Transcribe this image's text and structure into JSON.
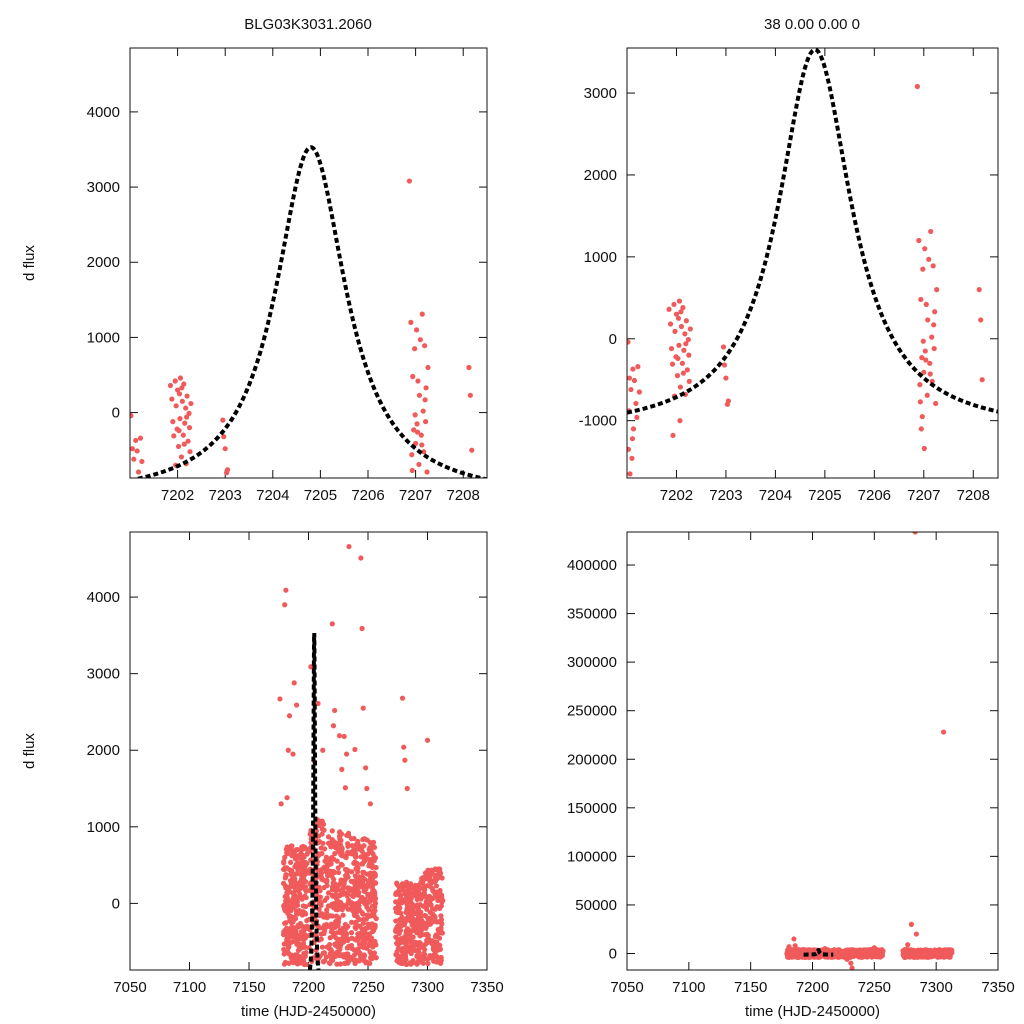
{
  "titles": {
    "left": "BLG03K3031.2060",
    "right": "38  0.00  0.00  0"
  },
  "colors": {
    "points": "#f05a5a",
    "model": "#000000",
    "axes": "#111111"
  },
  "chart_data": [
    {
      "id": "top-left",
      "type": "scatter",
      "title": "BLG03K3031.2060",
      "xlabel": "",
      "ylabel": "d flux",
      "xlim": [
        7201.0,
        7208.5
      ],
      "ylim": [
        -870,
        4850
      ],
      "xticks": [
        7202,
        7203,
        7204,
        7205,
        7206,
        7207,
        7208
      ],
      "yticks": [
        0,
        1000,
        2000,
        3000,
        4000
      ],
      "model": {
        "peak_time": 7204.8,
        "peak_flux": 3530,
        "baseline": -1150,
        "width": 0.9
      },
      "points": [
        [
          7201.02,
          -40
        ],
        [
          7201.05,
          -480
        ],
        [
          7201.08,
          -620
        ],
        [
          7201.12,
          -370
        ],
        [
          7201.15,
          -510
        ],
        [
          7201.18,
          -790
        ],
        [
          7201.22,
          -340
        ],
        [
          7201.25,
          -650
        ],
        [
          7201.85,
          360
        ],
        [
          7201.88,
          180
        ],
        [
          7201.9,
          -120
        ],
        [
          7201.92,
          -310
        ],
        [
          7201.95,
          420
        ],
        [
          7201.97,
          90
        ],
        [
          7201.99,
          -220
        ],
        [
          7202.0,
          300
        ],
        [
          7202.02,
          -450
        ],
        [
          7202.04,
          250
        ],
        [
          7202.05,
          -80
        ],
        [
          7202.06,
          460
        ],
        [
          7202.08,
          -590
        ],
        [
          7202.1,
          150
        ],
        [
          7202.12,
          -300
        ],
        [
          7202.13,
          380
        ],
        [
          7202.15,
          -140
        ],
        [
          7202.17,
          60
        ],
        [
          7202.18,
          -680
        ],
        [
          7202.2,
          220
        ],
        [
          7202.22,
          -380
        ],
        [
          7202.24,
          -10
        ],
        [
          7202.26,
          -520
        ],
        [
          7202.28,
          120
        ],
        [
          7201.96,
          -700
        ],
        [
          7202.03,
          -240
        ],
        [
          7202.09,
          330
        ],
        [
          7202.14,
          -420
        ],
        [
          7202.19,
          -60
        ],
        [
          7202.25,
          -200
        ],
        [
          7202.95,
          -100
        ],
        [
          7202.97,
          -320
        ],
        [
          7203.0,
          -480
        ],
        [
          7203.03,
          -800
        ],
        [
          7203.05,
          -760
        ],
        [
          7206.9,
          1200
        ],
        [
          7206.92,
          -560
        ],
        [
          7206.94,
          480
        ],
        [
          7206.96,
          -230
        ],
        [
          7206.98,
          850
        ],
        [
          7207.0,
          -410
        ],
        [
          7207.02,
          1100
        ],
        [
          7207.03,
          -150
        ],
        [
          7207.05,
          420
        ],
        [
          7207.07,
          -690
        ],
        [
          7207.08,
          230
        ],
        [
          7207.1,
          970
        ],
        [
          7207.12,
          -300
        ],
        [
          7207.14,
          1310
        ],
        [
          7207.16,
          20
        ],
        [
          7207.17,
          -520
        ],
        [
          7207.19,
          890
        ],
        [
          7207.21,
          -120
        ],
        [
          7207.22,
          330
        ],
        [
          7207.24,
          -790
        ],
        [
          7207.26,
          600
        ],
        [
          7206.93,
          -770
        ],
        [
          7206.99,
          -30
        ],
        [
          7207.04,
          -260
        ],
        [
          7207.13,
          -430
        ],
        [
          7207.2,
          170
        ],
        [
          7206.87,
          3080
        ],
        [
          7208.12,
          600
        ],
        [
          7208.15,
          230
        ],
        [
          7208.18,
          -500
        ]
      ]
    },
    {
      "id": "top-right",
      "type": "scatter",
      "title": "38  0.00  0.00  0",
      "xlabel": "",
      "ylabel": "",
      "xlim": [
        7201.0,
        7208.5
      ],
      "ylim": [
        -1700,
        3550
      ],
      "xticks": [
        7202,
        7203,
        7204,
        7205,
        7206,
        7207,
        7208
      ],
      "yticks": [
        -1000,
        0,
        1000,
        2000,
        3000
      ],
      "model": {
        "peak_time": 7204.8,
        "peak_flux": 3530,
        "baseline": -1150,
        "width": 0.9
      },
      "points": [
        [
          7201.02,
          -40
        ],
        [
          7201.03,
          -1350
        ],
        [
          7201.05,
          -480
        ],
        [
          7201.06,
          -1650
        ],
        [
          7201.08,
          -620
        ],
        [
          7201.1,
          -1460
        ],
        [
          7201.12,
          -370
        ],
        [
          7201.13,
          -1100
        ],
        [
          7201.15,
          -510
        ],
        [
          7201.18,
          -790
        ],
        [
          7201.2,
          -960
        ],
        [
          7201.22,
          -340
        ],
        [
          7201.25,
          -650
        ],
        [
          7201.04,
          -880
        ],
        [
          7201.11,
          -1220
        ],
        [
          7201.85,
          360
        ],
        [
          7201.88,
          180
        ],
        [
          7201.9,
          -120
        ],
        [
          7201.92,
          -310
        ],
        [
          7201.95,
          420
        ],
        [
          7201.97,
          90
        ],
        [
          7201.99,
          -220
        ],
        [
          7202.0,
          300
        ],
        [
          7202.02,
          -450
        ],
        [
          7202.04,
          250
        ],
        [
          7202.05,
          -80
        ],
        [
          7202.06,
          460
        ],
        [
          7202.08,
          -590
        ],
        [
          7202.1,
          150
        ],
        [
          7202.12,
          -300
        ],
        [
          7202.13,
          380
        ],
        [
          7202.15,
          -140
        ],
        [
          7202.17,
          60
        ],
        [
          7202.18,
          -680
        ],
        [
          7202.2,
          220
        ],
        [
          7202.22,
          -380
        ],
        [
          7202.24,
          -10
        ],
        [
          7202.26,
          -520
        ],
        [
          7202.28,
          120
        ],
        [
          7201.96,
          -700
        ],
        [
          7202.03,
          -240
        ],
        [
          7202.09,
          330
        ],
        [
          7202.14,
          -420
        ],
        [
          7202.19,
          -60
        ],
        [
          7202.25,
          -200
        ],
        [
          7201.93,
          -1180
        ],
        [
          7202.07,
          -1000
        ],
        [
          7202.95,
          -100
        ],
        [
          7202.97,
          -320
        ],
        [
          7203.0,
          -480
        ],
        [
          7203.03,
          -800
        ],
        [
          7203.05,
          -760
        ],
        [
          7206.9,
          1200
        ],
        [
          7206.92,
          -560
        ],
        [
          7206.94,
          480
        ],
        [
          7206.96,
          -230
        ],
        [
          7206.98,
          850
        ],
        [
          7207.0,
          -410
        ],
        [
          7207.02,
          1100
        ],
        [
          7207.03,
          -150
        ],
        [
          7207.05,
          420
        ],
        [
          7207.07,
          -690
        ],
        [
          7207.08,
          230
        ],
        [
          7207.1,
          970
        ],
        [
          7207.12,
          -300
        ],
        [
          7207.14,
          1310
        ],
        [
          7207.16,
          20
        ],
        [
          7207.17,
          -520
        ],
        [
          7207.19,
          890
        ],
        [
          7207.21,
          -120
        ],
        [
          7207.22,
          330
        ],
        [
          7207.24,
          -790
        ],
        [
          7207.26,
          600
        ],
        [
          7206.93,
          -770
        ],
        [
          7206.99,
          -30
        ],
        [
          7207.04,
          -260
        ],
        [
          7207.13,
          -430
        ],
        [
          7207.2,
          170
        ],
        [
          7206.95,
          -1100
        ],
        [
          7207.01,
          -1340
        ],
        [
          7206.97,
          -950
        ],
        [
          7206.87,
          3080
        ],
        [
          7208.12,
          600
        ],
        [
          7208.15,
          230
        ],
        [
          7208.18,
          -500
        ]
      ]
    },
    {
      "id": "bottom-left",
      "type": "scatter",
      "title": "",
      "xlabel": "time (HJD-2450000)",
      "ylabel": "d flux",
      "xlim": [
        7050,
        7350
      ],
      "ylim": [
        -870,
        4850
      ],
      "xticks": [
        7050,
        7100,
        7150,
        7200,
        7250,
        7300,
        7350
      ],
      "yticks": [
        0,
        1000,
        2000,
        3000,
        4000
      ],
      "model": {
        "peak_time": 7204.8,
        "peak_flux": 3530,
        "baseline": -1150,
        "width": 0.9
      },
      "clusters": [
        {
          "x0": 7179,
          "x1": 7199,
          "count": 300,
          "ymin": -800,
          "ymax": 750
        },
        {
          "x0": 7200,
          "x1": 7214,
          "count": 150,
          "ymin": -800,
          "ymax": 1100
        },
        {
          "x0": 7215,
          "x1": 7234,
          "count": 250,
          "ymin": -800,
          "ymax": 950
        },
        {
          "x0": 7236,
          "x1": 7257,
          "count": 300,
          "ymin": -800,
          "ymax": 850
        },
        {
          "x0": 7273,
          "x1": 7295,
          "count": 260,
          "ymin": -800,
          "ymax": 280
        },
        {
          "x0": 7295,
          "x1": 7313,
          "count": 170,
          "ymin": -800,
          "ymax": 450
        }
      ],
      "points": [
        [
          7181,
          4090
        ],
        [
          7180,
          3900
        ],
        [
          7176,
          2670
        ],
        [
          7188,
          2880
        ],
        [
          7190,
          2590
        ],
        [
          7184,
          2450
        ],
        [
          7183,
          2000
        ],
        [
          7187,
          1950
        ],
        [
          7177,
          1300
        ],
        [
          7182,
          1380
        ],
        [
          7202,
          3090
        ],
        [
          7208,
          2610
        ],
        [
          7220,
          3650
        ],
        [
          7221,
          2320
        ],
        [
          7222,
          2520
        ],
        [
          7226,
          2190
        ],
        [
          7230,
          2180
        ],
        [
          7232,
          1950
        ],
        [
          7234,
          4660
        ],
        [
          7239,
          2010
        ],
        [
          7228,
          1750
        ],
        [
          7231,
          1510
        ],
        [
          7244,
          4510
        ],
        [
          7245,
          3590
        ],
        [
          7246,
          2550
        ],
        [
          7248,
          1770
        ],
        [
          7249,
          1500
        ],
        [
          7252,
          1300
        ],
        [
          7279,
          2680
        ],
        [
          7280,
          2040
        ],
        [
          7281,
          1870
        ],
        [
          7283,
          1500
        ],
        [
          7300,
          2130
        ],
        [
          7212,
          2000
        ],
        [
          7205,
          1850
        ]
      ]
    },
    {
      "id": "bottom-right",
      "type": "scatter",
      "title": "",
      "xlabel": "time (HJD-2450000)",
      "ylabel": "",
      "xlim": [
        7050,
        7350
      ],
      "ylim": [
        -17000,
        434000
      ],
      "xticks": [
        7050,
        7100,
        7150,
        7200,
        7250,
        7300,
        7350
      ],
      "yticks": [
        0,
        50000,
        100000,
        150000,
        200000,
        250000,
        300000,
        350000,
        400000
      ],
      "model": {
        "peak_time": 7204.8,
        "peak_flux": 3530,
        "baseline": -1150,
        "width": 0.9
      },
      "clusters": [
        {
          "x0": 7179,
          "x1": 7199,
          "count": 220,
          "ymin": -4000,
          "ymax": 4000
        },
        {
          "x0": 7200,
          "x1": 7214,
          "count": 120,
          "ymin": -4000,
          "ymax": 4000
        },
        {
          "x0": 7215,
          "x1": 7234,
          "count": 180,
          "ymin": -4000,
          "ymax": 4000
        },
        {
          "x0": 7236,
          "x1": 7257,
          "count": 200,
          "ymin": -4000,
          "ymax": 4000
        },
        {
          "x0": 7273,
          "x1": 7295,
          "count": 180,
          "ymin": -4000,
          "ymax": 4000
        },
        {
          "x0": 7295,
          "x1": 7313,
          "count": 130,
          "ymin": -4000,
          "ymax": 4000
        }
      ],
      "points": [
        [
          7283,
          434000
        ],
        [
          7306,
          228000
        ],
        [
          7280,
          30000
        ],
        [
          7284,
          20000
        ],
        [
          7185,
          15000
        ],
        [
          7186,
          8000
        ],
        [
          7231,
          -10000
        ],
        [
          7232,
          -15000
        ],
        [
          7228,
          -6000
        ],
        [
          7181,
          7000
        ],
        [
          7277,
          9000
        ],
        [
          7210,
          5000
        ],
        [
          7250,
          6000
        ]
      ]
    }
  ]
}
